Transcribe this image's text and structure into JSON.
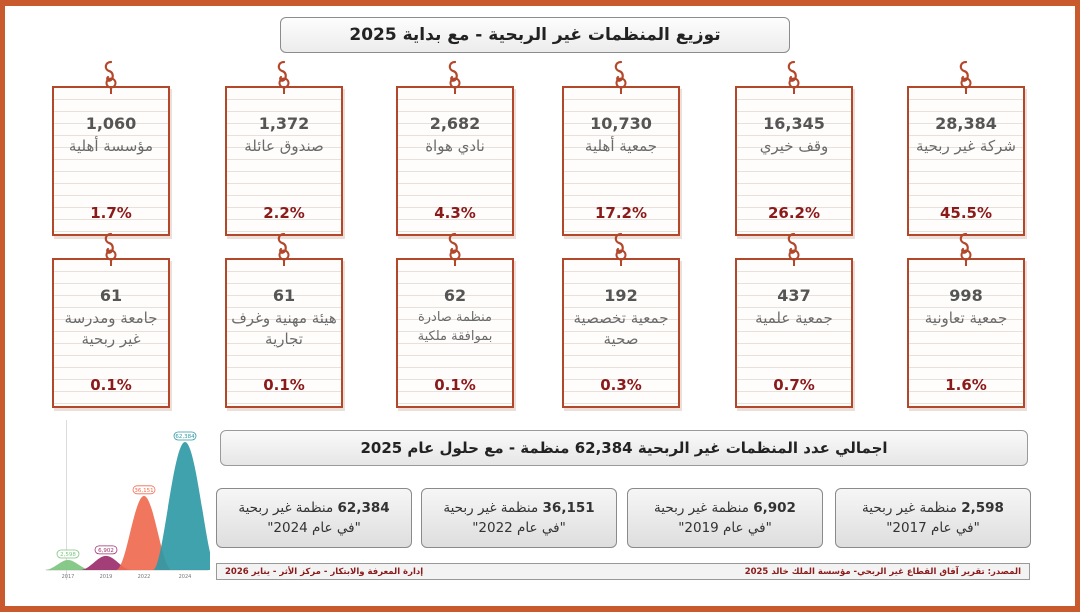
{
  "title": "توزيع المنظمات غير الربحية - مع بداية 2025",
  "cards_top": [
    {
      "number": "28,384",
      "label": "شركة غير ربحية",
      "percent": "45.5%"
    },
    {
      "number": "16,345",
      "label": "وقف خيري",
      "percent": "26.2%"
    },
    {
      "number": "10,730",
      "label": "جمعية أهلية",
      "percent": "17.2%"
    },
    {
      "number": "2,682",
      "label": "نادي هواة",
      "percent": "4.3%"
    },
    {
      "number": "1,372",
      "label": "صندوق عائلة",
      "percent": "2.2%"
    },
    {
      "number": "1,060",
      "label": "مؤسسة أهلية",
      "percent": "1.7%"
    }
  ],
  "cards_bottom": [
    {
      "number": "998",
      "label": "جمعية تعاونية",
      "percent": "1.6%"
    },
    {
      "number": "437",
      "label": "جمعية علمية",
      "percent": "0.7%"
    },
    {
      "number": "192",
      "label": "جمعية تخصصية صحية",
      "percent": "0.3%"
    },
    {
      "number": "62",
      "label": "منظمة صادرة بموافقة ملكية",
      "percent": "0.1%"
    },
    {
      "number": "61",
      "label": "هيئة مهنية وغرف تجارية",
      "percent": "0.1%"
    },
    {
      "number": "61",
      "label": "جامعة ومدرسة غير ربحية",
      "percent": "0.1%"
    }
  ],
  "total": "اجمالي عدد المنظمات غير الربحية 62,384 منظمة - مع حلول عام 2025",
  "years": [
    {
      "count": "2,598",
      "unit": "منظمة غير ربحية",
      "year": "\"في عام 2017\""
    },
    {
      "count": "6,902",
      "unit": "منظمة غير ربحية",
      "year": "\"في عام 2019\""
    },
    {
      "count": "36,151",
      "unit": "منظمة غير ربحية",
      "year": "\"في عام 2022\""
    },
    {
      "count": "62,384",
      "unit": "منظمة غير ربحية",
      "year": "\"في عام 2024\""
    }
  ],
  "source_left": "المصدر: تقرير آفاق القطاع غير الربحي- مؤسسة الملك خالد 2025",
  "source_right": "إدارة المعرفة والابتكار - مركز الأثر - يناير 2026",
  "colors": {
    "frame": "#c85a2e",
    "card_border": "#b3472a",
    "percent": "#8b1a1a"
  },
  "chart_data": {
    "type": "area",
    "x": [
      "2017",
      "2019",
      "2022",
      "2024"
    ],
    "values": [
      2598,
      6902,
      36151,
      62384
    ],
    "data_labels": [
      "2,598",
      "6,902",
      "36,151",
      "62,384"
    ],
    "colors": [
      "#7cc47f",
      "#9b2e6e",
      "#ef6a4f",
      "#2f9aa6"
    ],
    "ylim": [
      0,
      62384
    ]
  }
}
